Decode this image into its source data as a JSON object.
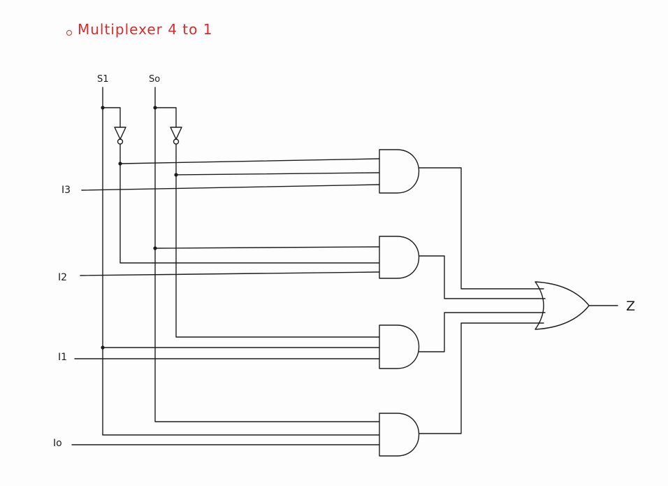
{
  "title": "Multiplexer  4  to  1",
  "title_color": "#d62b2b",
  "ink_color": "#1c1c1c",
  "paper_color": "#fdfdfd",
  "select_inputs": {
    "s1": "S1",
    "s0": "So"
  },
  "data_inputs": {
    "i3": "I3",
    "i2": "I2",
    "i1": "I1",
    "i0": "Io"
  },
  "output": {
    "label": "Z"
  },
  "gates": {
    "and_count": 4,
    "or_count": 1,
    "not_count": 2
  }
}
